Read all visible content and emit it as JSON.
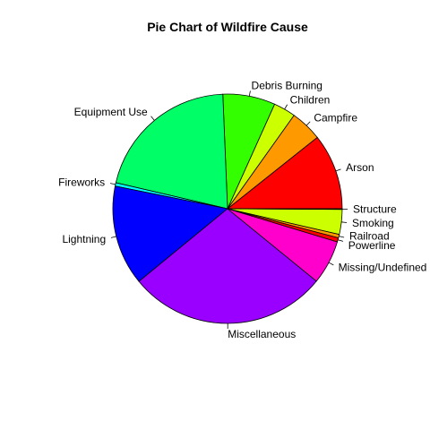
{
  "chart_data": {
    "type": "pie",
    "title": "Pie Chart of Wildfire Cause",
    "categories": [
      "Arson",
      "Campfire",
      "Children",
      "Debris Burning",
      "Equipment Use",
      "Fireworks",
      "Lightning",
      "Miscellaneous",
      "Missing/Undefined",
      "Powerline",
      "Railroad",
      "Smoking",
      "Structure"
    ],
    "values": [
      11.0,
      4.6,
      3.2,
      7.6,
      21.3,
      0.5,
      14.5,
      29.0,
      6.4,
      0.6,
      0.5,
      3.6,
      0.1
    ],
    "colors": [
      "#FF0000",
      "#FF9900",
      "#CCFF00",
      "#33FF00",
      "#00FF66",
      "#00FFFF",
      "#0000FF",
      "#9900FF",
      "#FF00CC",
      "#FF0000",
      "#FF9900",
      "#CCFF00",
      "#33FF00"
    ],
    "start": "3 o'clock",
    "direction": "counterclockwise"
  }
}
